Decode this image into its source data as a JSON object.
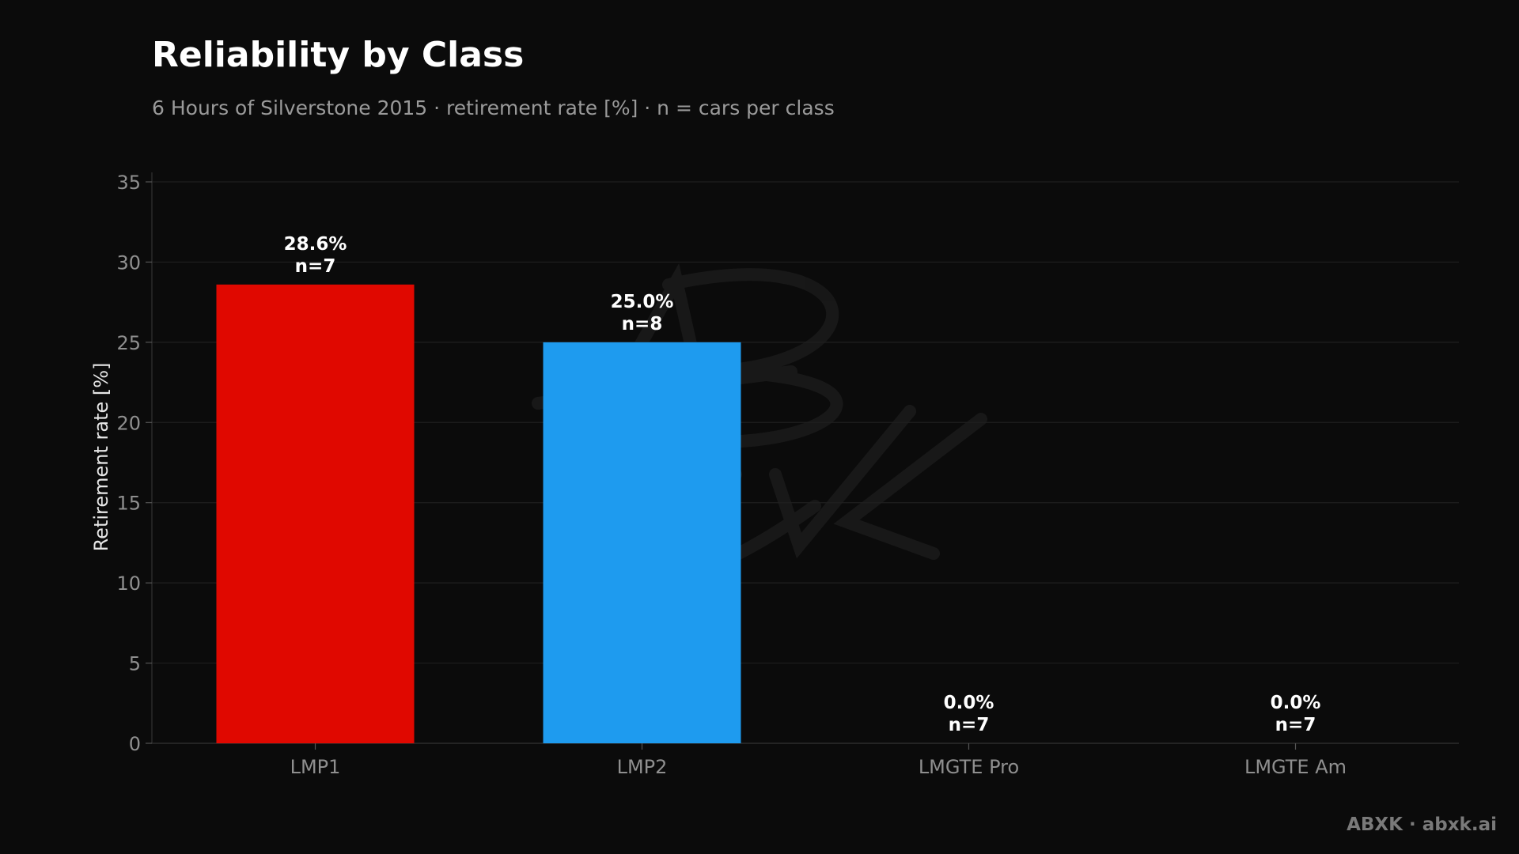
{
  "chart_data": {
    "type": "bar",
    "title": "Reliability by Class",
    "subtitle": "6 Hours of Silverstone 2015 · retirement rate [%] · n = cars per class",
    "xlabel": "",
    "ylabel": "Retirement rate [%]",
    "ylim": [
      0,
      35
    ],
    "yticks": [
      0,
      5,
      10,
      15,
      20,
      25,
      30,
      35
    ],
    "grid": true,
    "categories": [
      "LMP1",
      "LMP2",
      "LMGTE Pro",
      "LMGTE Am"
    ],
    "values": [
      28.6,
      25.0,
      0.0,
      0.0
    ],
    "value_labels": [
      "28.6%",
      "25.0%",
      "0.0%",
      "0.0%"
    ],
    "n_labels": [
      "n=7",
      "n=8",
      "n=7",
      "n=7"
    ],
    "colors": [
      "#e00800",
      "#1e9bef",
      "#888888",
      "#888888"
    ]
  },
  "watermark": "ABXK",
  "brand": "ABXK · abxk.ai"
}
